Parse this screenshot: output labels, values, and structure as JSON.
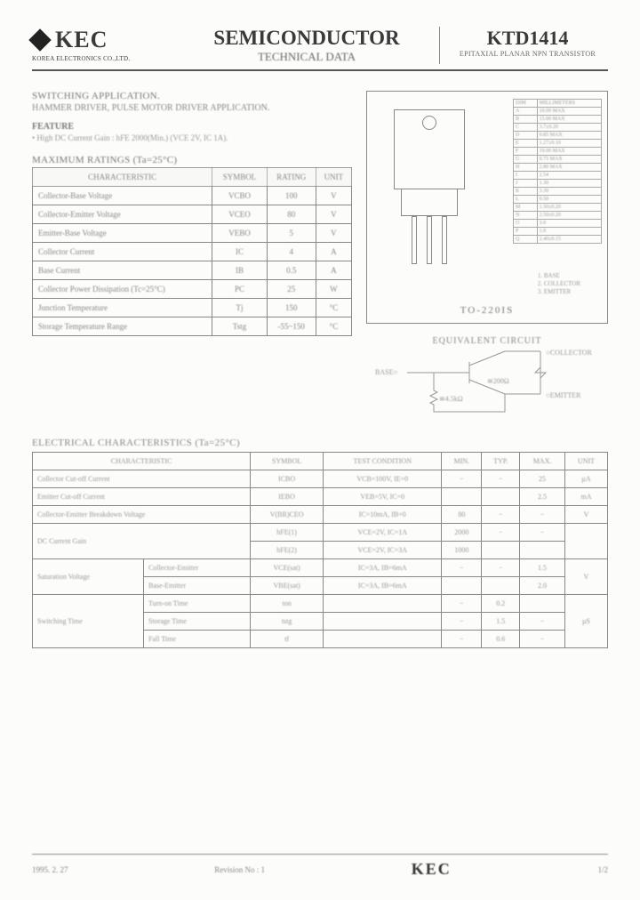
{
  "header": {
    "logo_text": "KEC",
    "logo_sub": "KOREA ELECTRONICS CO.,LTD.",
    "title": "SEMICONDUCTOR",
    "subtitle": "TECHNICAL DATA",
    "part": "KTD1414",
    "part_desc": "EPITAXIAL PLANAR NPN TRANSISTOR"
  },
  "app": {
    "line1": "SWITCHING APPLICATION.",
    "line2": "HAMMER DRIVER, PULSE MOTOR DRIVER APPLICATION."
  },
  "feature": {
    "heading": "FEATURE",
    "item": "• High DC Current Gain : hFE 2000(Min.) (VCE 2V, IC 1A)."
  },
  "ratings": {
    "heading": "MAXIMUM RATINGS (Ta=25°C)",
    "columns": [
      "CHARACTERISTIC",
      "SYMBOL",
      "RATING",
      "UNIT"
    ],
    "rows": [
      [
        "Collector-Base Voltage",
        "VCBO",
        "100",
        "V"
      ],
      [
        "Collector-Emitter Voltage",
        "VCEO",
        "80",
        "V"
      ],
      [
        "Emitter-Base Voltage",
        "VEBO",
        "5",
        "V"
      ],
      [
        "Collector Current",
        "IC",
        "4",
        "A"
      ],
      [
        "Base Current",
        "IB",
        "0.5",
        "A"
      ],
      [
        "Collector Power Dissipation (Tc=25°C)",
        "PC",
        "25",
        "W"
      ],
      [
        "Junction Temperature",
        "Tj",
        "150",
        "°C"
      ],
      [
        "Storage Temperature Range",
        "Tstg",
        "-55~150",
        "°C"
      ]
    ]
  },
  "package": {
    "label": "TO-220IS",
    "pins": [
      "1. BASE",
      "2. COLLECTOR",
      "3. EMITTER"
    ],
    "dim_header": [
      "DIM",
      "MILLIMETERS"
    ],
    "dims": [
      [
        "A",
        "10.00 MAX"
      ],
      [
        "B",
        "15.00 MAX"
      ],
      [
        "C",
        "3.7±0.20"
      ],
      [
        "D",
        "0.85 MAX"
      ],
      [
        "E",
        "1.27±0.10"
      ],
      [
        "F",
        "19.00 MAX"
      ],
      [
        "G",
        "0.75 MAX"
      ],
      [
        "H",
        "2.80 MAX"
      ],
      [
        "I",
        "2.54"
      ],
      [
        "J",
        "1.30"
      ],
      [
        "K",
        "3.30"
      ],
      [
        "L",
        "0.50"
      ],
      [
        "M",
        "1.50±0.20"
      ],
      [
        "N",
        "2.50±0.20"
      ],
      [
        "O",
        "3.0"
      ],
      [
        "P",
        "1.0"
      ],
      [
        "Q",
        "2.40±0.15"
      ]
    ]
  },
  "equiv": {
    "title": "EQUIVALENT CIRCUIT",
    "base": "BASE○",
    "collector": "○COLLECTOR",
    "emitter": "○EMITTER",
    "r1": "≅4.5kΩ",
    "r2": "≅200Ω"
  },
  "elec": {
    "heading": "ELECTRICAL CHARACTERISTICS (Ta=25°C)",
    "columns": [
      "CHARACTERISTIC",
      "SYMBOL",
      "TEST CONDITION",
      "MIN.",
      "TYP.",
      "MAX.",
      "UNIT"
    ],
    "rows": [
      {
        "c": "Collector Cut-off Current",
        "s": "ICBO",
        "t": "VCB=100V, IE=0",
        "min": "−",
        "typ": "−",
        "max": "25",
        "u": "µA",
        "rs": 1
      },
      {
        "c": "Emitter Cut-off Current",
        "s": "IEBO",
        "t": "VEB=5V, IC=0",
        "min": "",
        "typ": "",
        "max": "2.5",
        "u": "mA",
        "rs": 1
      },
      {
        "c": "Collector-Emitter Breakdown Voltage",
        "s": "V(BR)CEO",
        "t": "IC=10mA, IB=0",
        "min": "80",
        "typ": "−",
        "max": "−",
        "u": "V",
        "rs": 1
      },
      {
        "c": "DC Current Gain",
        "s": "hFE(1)",
        "t": "VCE=2V, IC=1A",
        "min": "2000",
        "typ": "−",
        "max": "−",
        "u": "",
        "rs": 2
      },
      {
        "c": "",
        "s": "hFE(2)",
        "t": "VCE=2V, IC=3A",
        "min": "1000",
        "typ": "",
        "max": "",
        "u": "",
        "rs": 0
      },
      {
        "c": "Saturation Voltage",
        "c2": "Collector-Emitter",
        "s": "VCE(sat)",
        "t": "IC=3A, IB=6mA",
        "min": "−",
        "typ": "−",
        "max": "1.5",
        "u": "V",
        "rs": 2
      },
      {
        "c": "",
        "c2": "Base-Emitter",
        "s": "VBE(sat)",
        "t": "IC=3A, IB=6mA",
        "min": "",
        "typ": "",
        "max": "2.0",
        "u": "",
        "rs": 0
      },
      {
        "c": "Switching Time",
        "c2": "Turn-on Time",
        "s": "ton",
        "t": "",
        "min": "−",
        "typ": "0.2",
        "max": "",
        "u": "µS",
        "rs": 3
      },
      {
        "c": "",
        "c2": "Storage Time",
        "s": "tstg",
        "t": "",
        "min": "−",
        "typ": "1.5",
        "max": "−",
        "u": "",
        "rs": 0
      },
      {
        "c": "",
        "c2": "Fall Time",
        "s": "tf",
        "t": "",
        "min": "−",
        "typ": "0.6",
        "max": "−",
        "u": "",
        "rs": 0
      }
    ]
  },
  "footer": {
    "date": "1995. 2. 27",
    "rev": "Revision No : 1",
    "logo": "KEC",
    "page": "1/2"
  }
}
